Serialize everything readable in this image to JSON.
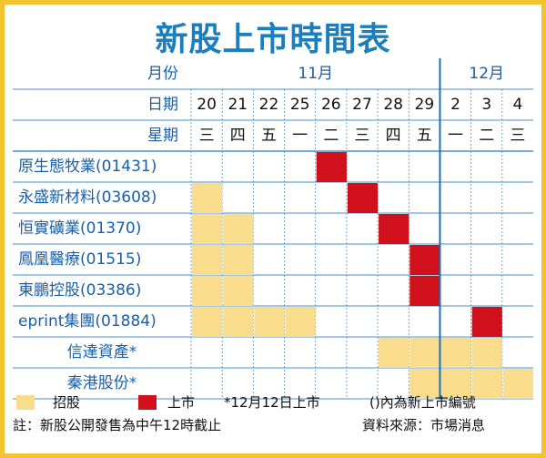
{
  "title": "新股上市時間表",
  "header_labels": {
    "month": "月份",
    "date": "日期",
    "weekday": "星期"
  },
  "months": [
    {
      "label": "11月",
      "day_count": 8
    },
    {
      "label": "12月",
      "day_count": 3
    }
  ],
  "days": [
    {
      "date": "20",
      "weekday": "三"
    },
    {
      "date": "21",
      "weekday": "四"
    },
    {
      "date": "22",
      "weekday": "五"
    },
    {
      "date": "25",
      "weekday": "一"
    },
    {
      "date": "26",
      "weekday": "二"
    },
    {
      "date": "27",
      "weekday": "三"
    },
    {
      "date": "28",
      "weekday": "四"
    },
    {
      "date": "29",
      "weekday": "五"
    },
    {
      "date": "2",
      "weekday": "一"
    },
    {
      "date": "3",
      "weekday": "二"
    },
    {
      "date": "4",
      "weekday": "三"
    }
  ],
  "stocks": [
    {
      "name": "原生態牧業(01431)",
      "subscription_days": [],
      "listing_day": "26"
    },
    {
      "name": "永盛新材料(03608)",
      "subscription_days": [
        "20"
      ],
      "listing_day": "27"
    },
    {
      "name": "恒實礦業(01370)",
      "subscription_days": [
        "20",
        "21"
      ],
      "listing_day": "28"
    },
    {
      "name": "鳳凰醫療(01515)",
      "subscription_days": [
        "20",
        "21"
      ],
      "listing_day": "29"
    },
    {
      "name": "東鵬控股(03386)",
      "subscription_days": [
        "20",
        "21"
      ],
      "listing_day": "29"
    },
    {
      "name": "eprint集團(01884)",
      "subscription_days": [
        "20",
        "21",
        "22",
        "25"
      ],
      "listing_day": "3"
    },
    {
      "name": "信達資產*",
      "subscription_days": [
        "28",
        "29",
        "2",
        "3"
      ],
      "listing_day": null
    },
    {
      "name": "秦港股份*",
      "subscription_days": [
        "29",
        "2",
        "3",
        "4"
      ],
      "listing_day": null
    }
  ],
  "legend": {
    "subscription_label": "招股",
    "listing_label": "上市",
    "asterisk_note": "*12月12日上市",
    "bracket_note": "()內為新上市編號"
  },
  "footnote": "註：新股公開發售為中午12時截止",
  "source": "資料來源：市場消息",
  "colors": {
    "title": "#1b7fbf",
    "header_text": "#1b5fa8",
    "subscription": "#f9dc8c",
    "listing": "#d0101b",
    "grid": "#4a90c8",
    "frame": "#f4c430"
  }
}
